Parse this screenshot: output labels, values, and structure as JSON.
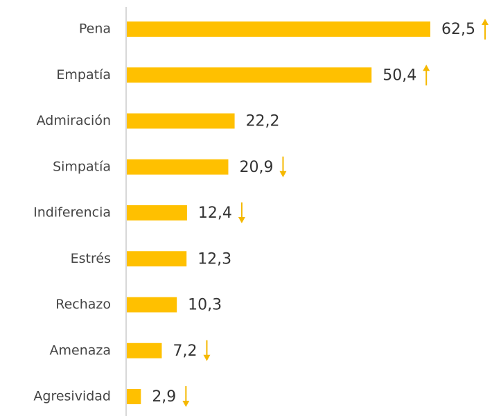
{
  "chart_data": {
    "type": "bar",
    "orientation": "horizontal",
    "categories": [
      "Pena",
      "Empatía",
      "Admiración",
      "Simpatía",
      "Indiferencia",
      "Estrés",
      "Rechazo",
      "Amenaza",
      "Agresividad"
    ],
    "values": [
      62.5,
      50.4,
      22.2,
      20.9,
      12.4,
      12.3,
      10.3,
      7.2,
      2.9
    ],
    "value_labels": [
      "62,5",
      "50,4",
      "22,2",
      "20,9",
      "12,4",
      "12,3",
      "10,3",
      "7,2",
      "2,9"
    ],
    "trends": [
      "up",
      "up",
      null,
      "down",
      "down",
      null,
      null,
      "down",
      "down"
    ],
    "color": "#ffc000",
    "trend_color": "#f5b800"
  }
}
